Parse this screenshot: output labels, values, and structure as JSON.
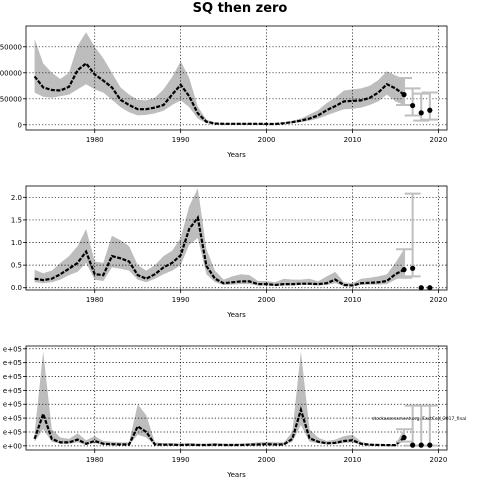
{
  "figure_title": "SQ then zero",
  "watermark": "stockassessment.org, EastCod_2017_final",
  "colors": {
    "band": "#bdbdbd",
    "line": "#000000",
    "grid": "#000000",
    "future_band": "#bfbfbf"
  },
  "chart_data": [
    {
      "type": "line",
      "xlabel": "Years",
      "ylabel": "",
      "xlim": [
        1972,
        2021
      ],
      "ylim": [
        -10000,
        190000
      ],
      "xticks": [
        1980,
        1990,
        2000,
        2010,
        2020
      ],
      "yticks": [
        0,
        50000,
        100000,
        150000
      ],
      "ytick_labels": [
        "0",
        "50000",
        "100000",
        "150000"
      ],
      "grid": true,
      "x": [
        1973,
        1974,
        1975,
        1976,
        1977,
        1978,
        1979,
        1980,
        1981,
        1982,
        1983,
        1984,
        1985,
        1986,
        1987,
        1988,
        1989,
        1990,
        1991,
        1992,
        1993,
        1994,
        1995,
        1996,
        1997,
        1998,
        1999,
        2000,
        2001,
        2002,
        2003,
        2004,
        2005,
        2006,
        2007,
        2008,
        2009,
        2010,
        2011,
        2012,
        2013,
        2014,
        2015,
        2016
      ],
      "estimate": [
        93000,
        72000,
        67000,
        66000,
        73000,
        105000,
        118000,
        97000,
        85000,
        72000,
        48000,
        38000,
        30000,
        30000,
        33000,
        38000,
        58000,
        77000,
        55000,
        22000,
        6000,
        2500,
        2000,
        2000,
        2000,
        2000,
        2000,
        1500,
        1500,
        3000,
        5000,
        8000,
        12000,
        18000,
        28000,
        36000,
        45000,
        46000,
        47000,
        52000,
        62000,
        78000,
        70000,
        58000
      ],
      "lower": [
        62000,
        54000,
        52000,
        55000,
        58000,
        68000,
        78000,
        68000,
        62000,
        48000,
        34000,
        24000,
        18000,
        19000,
        22000,
        27000,
        38000,
        47000,
        34000,
        12000,
        3000,
        1500,
        1000,
        1000,
        1000,
        1000,
        1000,
        800,
        800,
        1500,
        3000,
        5000,
        8000,
        12000,
        18000,
        24000,
        30000,
        31000,
        33000,
        38000,
        45000,
        58000,
        45000,
        38000
      ],
      "upper": [
        165000,
        118000,
        100000,
        88000,
        100000,
        152000,
        178000,
        150000,
        128000,
        100000,
        72000,
        58000,
        48000,
        47000,
        52000,
        68000,
        92000,
        122000,
        90000,
        35000,
        10000,
        4000,
        3000,
        3000,
        3000,
        3000,
        3000,
        2500,
        2500,
        4500,
        8000,
        12000,
        20000,
        28000,
        42000,
        52000,
        66000,
        68000,
        70000,
        75000,
        86000,
        103000,
        95000,
        88000
      ],
      "projection": {
        "x": [
          2016,
          2017,
          2018,
          2019
        ],
        "estimate": [
          58000,
          37000,
          23000,
          28000
        ],
        "lower": [
          38000,
          18000,
          8000,
          10000
        ],
        "upper": [
          90000,
          70000,
          60000,
          62000
        ]
      }
    },
    {
      "type": "line",
      "xlabel": "Years",
      "ylabel": "",
      "xlim": [
        1972,
        2021
      ],
      "ylim": [
        -0.05,
        2.25
      ],
      "xticks": [
        1980,
        1990,
        2000,
        2010,
        2020
      ],
      "yticks": [
        0,
        0.5,
        1.0,
        1.5,
        2.0
      ],
      "ytick_labels": [
        "0.0",
        "0.5",
        "1.0",
        "1.5",
        "2.0"
      ],
      "grid": true,
      "x": [
        1973,
        1974,
        1975,
        1976,
        1977,
        1978,
        1979,
        1980,
        1981,
        1982,
        1983,
        1984,
        1985,
        1986,
        1987,
        1988,
        1989,
        1990,
        1991,
        1992,
        1993,
        1994,
        1995,
        1996,
        1997,
        1998,
        1999,
        2000,
        2001,
        2002,
        2003,
        2004,
        2005,
        2006,
        2007,
        2008,
        2009,
        2010,
        2011,
        2012,
        2013,
        2014,
        2015,
        2016
      ],
      "estimate": [
        0.2,
        0.17,
        0.2,
        0.3,
        0.42,
        0.55,
        0.8,
        0.3,
        0.28,
        0.7,
        0.65,
        0.58,
        0.28,
        0.2,
        0.3,
        0.45,
        0.55,
        0.72,
        1.3,
        1.55,
        0.48,
        0.2,
        0.1,
        0.12,
        0.14,
        0.14,
        0.08,
        0.08,
        0.06,
        0.08,
        0.08,
        0.09,
        0.09,
        0.08,
        0.1,
        0.18,
        0.06,
        0.05,
        0.1,
        0.11,
        0.12,
        0.15,
        0.3,
        0.4
      ],
      "lower": [
        0.12,
        0.1,
        0.12,
        0.18,
        0.28,
        0.35,
        0.55,
        0.18,
        0.15,
        0.45,
        0.42,
        0.38,
        0.18,
        0.12,
        0.2,
        0.3,
        0.38,
        0.5,
        0.95,
        1.1,
        0.3,
        0.12,
        0.06,
        0.07,
        0.08,
        0.08,
        0.05,
        0.05,
        0.04,
        0.05,
        0.05,
        0.06,
        0.06,
        0.05,
        0.06,
        0.1,
        0.04,
        0.03,
        0.06,
        0.07,
        0.07,
        0.08,
        0.18,
        0.25
      ],
      "upper": [
        0.4,
        0.32,
        0.38,
        0.55,
        0.7,
        0.92,
        1.3,
        0.58,
        0.55,
        1.15,
        1.05,
        0.92,
        0.5,
        0.38,
        0.5,
        0.7,
        0.82,
        1.1,
        1.8,
        2.2,
        0.85,
        0.38,
        0.18,
        0.25,
        0.3,
        0.28,
        0.15,
        0.15,
        0.12,
        0.2,
        0.18,
        0.18,
        0.2,
        0.14,
        0.25,
        0.35,
        0.12,
        0.1,
        0.2,
        0.22,
        0.25,
        0.3,
        0.55,
        0.85
      ],
      "projection": {
        "x": [
          2016,
          2017,
          2018,
          2019
        ],
        "estimate": [
          0.4,
          0.43,
          0.0,
          0.0
        ],
        "lower": [
          0.22,
          0.25,
          0.0,
          0.0
        ],
        "upper": [
          0.85,
          2.08,
          0.0,
          0.0
        ]
      }
    },
    {
      "type": "line",
      "xlabel": "Years",
      "ylabel": "",
      "xlim": [
        1972,
        2021
      ],
      "ylim": [
        -0.3,
        7.2
      ],
      "y_unit_note": "tick labels of the form N e+05 (partially cropped)",
      "xticks": [
        1980,
        1990,
        2000,
        2010,
        2020
      ],
      "yticks": [
        0,
        1,
        2,
        3,
        4,
        5,
        6,
        7
      ],
      "ytick_labels": [
        "e+00",
        "e+05",
        "e+05",
        "e+05",
        "e+05",
        "e+05",
        "e+05",
        "e+05"
      ],
      "grid": true,
      "x": [
        1973,
        1974,
        1975,
        1976,
        1977,
        1978,
        1979,
        1980,
        1981,
        1982,
        1983,
        1984,
        1985,
        1986,
        1987,
        1988,
        1989,
        1990,
        1991,
        1992,
        1993,
        1994,
        1995,
        1996,
        1997,
        1998,
        1999,
        2000,
        2001,
        2002,
        2003,
        2004,
        2005,
        2006,
        2007,
        2008,
        2009,
        2010,
        2011,
        2012,
        2013,
        2014,
        2015,
        2016
      ],
      "estimate": [
        0.5,
        2.3,
        0.5,
        0.25,
        0.25,
        0.45,
        0.15,
        0.35,
        0.15,
        0.12,
        0.1,
        0.1,
        1.4,
        1.0,
        0.1,
        0.08,
        0.08,
        0.06,
        0.08,
        0.06,
        0.06,
        0.08,
        0.06,
        0.06,
        0.06,
        0.08,
        0.1,
        0.12,
        0.1,
        0.1,
        0.5,
        2.6,
        0.55,
        0.3,
        0.18,
        0.22,
        0.35,
        0.4,
        0.15,
        0.08,
        0.06,
        0.05,
        0.05,
        0.6
      ],
      "lower": [
        0.3,
        1.2,
        0.3,
        0.15,
        0.15,
        0.25,
        0.08,
        0.2,
        0.08,
        0.07,
        0.06,
        0.06,
        0.8,
        0.6,
        0.06,
        0.05,
        0.05,
        0.04,
        0.05,
        0.04,
        0.04,
        0.05,
        0.04,
        0.04,
        0.04,
        0.05,
        0.06,
        0.07,
        0.06,
        0.06,
        0.3,
        1.5,
        0.3,
        0.18,
        0.1,
        0.12,
        0.2,
        0.25,
        0.08,
        0.05,
        0.04,
        0.03,
        0.03,
        0.3
      ],
      "upper": [
        0.9,
        6.8,
        1.2,
        0.6,
        0.5,
        0.9,
        0.4,
        0.7,
        0.35,
        0.3,
        0.25,
        0.25,
        3.0,
        2.2,
        0.25,
        0.2,
        0.2,
        0.15,
        0.2,
        0.15,
        0.15,
        0.2,
        0.15,
        0.15,
        0.15,
        0.2,
        0.25,
        0.3,
        0.25,
        0.25,
        1.0,
        6.8,
        1.2,
        0.6,
        0.35,
        0.45,
        0.7,
        0.8,
        0.3,
        0.15,
        0.12,
        0.1,
        0.1,
        1.2
      ],
      "projection": {
        "x": [
          2016,
          2017,
          2018,
          2019
        ],
        "estimate": [
          0.6,
          0.05,
          0.05,
          0.05
        ],
        "lower": [
          0.3,
          0.02,
          0.02,
          0.02
        ],
        "upper": [
          1.2,
          2.9,
          2.9,
          2.9
        ]
      }
    }
  ]
}
